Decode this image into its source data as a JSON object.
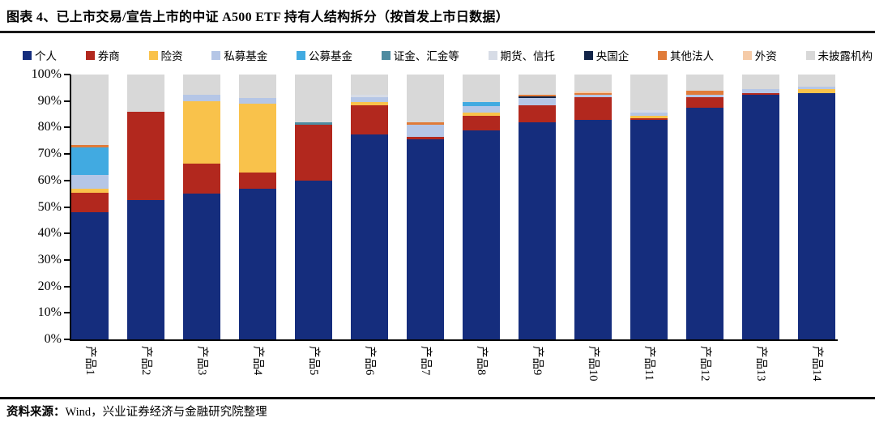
{
  "title": "图表 4、已上市交易/宣告上市的中证 A500 ETF 持有人结构拆分（按首发上市日数据）",
  "footer": {
    "source_label": "资料来源：",
    "source_text": "Wind，兴业证券经济与金融研究院整理"
  },
  "chart_data": {
    "type": "bar",
    "subtype": "stacked-100-percent",
    "title": "已上市交易/宣告上市的中证A500ETF持有人结构拆分（按首发上市日数据）",
    "xlabel": "",
    "ylabel": "",
    "grid": false,
    "legend_position": "top",
    "y_axis": {
      "min": 0,
      "max": 100,
      "step": 10,
      "ticks": [
        "0%",
        "10%",
        "20%",
        "30%",
        "40%",
        "50%",
        "60%",
        "70%",
        "80%",
        "90%",
        "100%"
      ]
    },
    "categories": [
      "产品1",
      "产品2",
      "产品3",
      "产品4",
      "产品5",
      "产品6",
      "产品7",
      "产品8",
      "产品9",
      "产品10",
      "产品11",
      "产品12",
      "产品13",
      "产品14"
    ],
    "series": [
      {
        "name": "个人",
        "color": "#152D7D",
        "values": [
          48,
          52.5,
          55,
          57,
          60,
          77.5,
          75.5,
          79,
          82,
          83,
          83,
          87.5,
          92.5,
          93
        ]
      },
      {
        "name": "券商",
        "color": "#B2281E",
        "values": [
          7.5,
          33.5,
          11.5,
          6,
          21,
          11,
          1,
          5.5,
          6.5,
          8.5,
          0.5,
          4,
          0.5,
          0
        ]
      },
      {
        "name": "险资",
        "color": "#F9C24B",
        "values": [
          1.5,
          0,
          23.5,
          26,
          0,
          1,
          0,
          1,
          0,
          0,
          1,
          0,
          0,
          1.5
        ]
      },
      {
        "name": "私募基金",
        "color": "#B5C6E6",
        "values": [
          5,
          0,
          2.5,
          2,
          0,
          2,
          4.5,
          2.5,
          2.5,
          1,
          1,
          1,
          1.5,
          1
        ]
      },
      {
        "name": "公募基金",
        "color": "#41AAE1",
        "values": [
          10.5,
          0,
          0,
          0,
          0,
          0,
          0,
          1.5,
          0,
          0,
          0,
          0,
          0,
          0
        ]
      },
      {
        "name": "证金、汇金等",
        "color": "#4E8BA0",
        "values": [
          0,
          0,
          0,
          0,
          1,
          0,
          0,
          0,
          0,
          0,
          0,
          0,
          0,
          0
        ]
      },
      {
        "name": "期货、信托",
        "color": "#D7DCE6",
        "values": [
          0,
          0,
          0,
          0,
          0,
          1,
          0,
          0,
          0,
          0,
          1,
          0,
          0,
          0
        ]
      },
      {
        "name": "央国企",
        "color": "#122448",
        "values": [
          0,
          0,
          0,
          0,
          0,
          0,
          0,
          0,
          0.7,
          0,
          0,
          0,
          0,
          0
        ]
      },
      {
        "name": "其他法人",
        "color": "#E07B39",
        "values": [
          1,
          0,
          0,
          0,
          0,
          0,
          1,
          0,
          0.8,
          0.5,
          0,
          1.5,
          0,
          0
        ]
      },
      {
        "name": "外资",
        "color": "#F5CBA8",
        "values": [
          0,
          0,
          0,
          0,
          0,
          0,
          0,
          0,
          0,
          0.5,
          0,
          0,
          0,
          0
        ]
      },
      {
        "name": "未披露机构",
        "color": "#D8D8D8",
        "values": [
          26.5,
          14,
          7.5,
          9,
          18,
          7.5,
          18,
          10.5,
          7.5,
          6.5,
          13.5,
          6,
          5.5,
          4.5
        ]
      }
    ]
  }
}
